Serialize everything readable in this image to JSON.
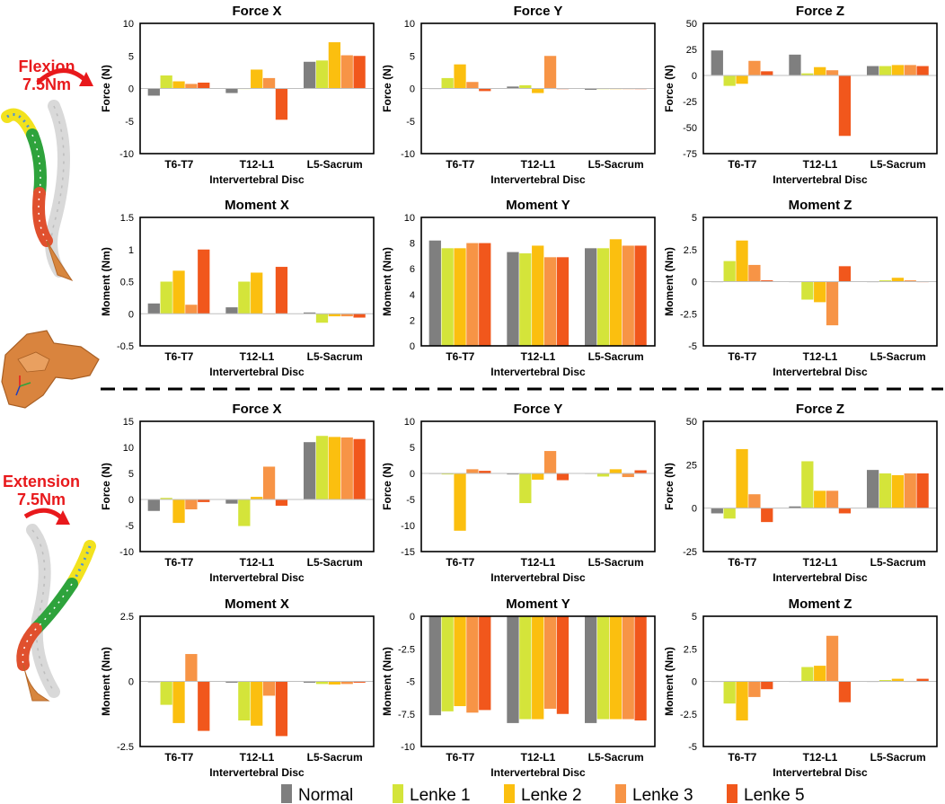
{
  "colors": {
    "Normal": "#7f7f7f",
    "Lenke 1": "#d4e43a",
    "Lenke 2": "#fbbf0f",
    "Lenke 3": "#f79446",
    "Lenke 5": "#f1571c",
    "side_label": "#e8191c"
  },
  "side_labels": {
    "flexion": [
      "Flexion",
      "7.5Nm"
    ],
    "extension": [
      "Extension",
      "7.5Nm"
    ]
  },
  "legend": [
    "Normal",
    "Lenke 1",
    "Lenke 2",
    "Lenke 3",
    "Lenke 5"
  ],
  "chart_data": [
    {
      "id": "flex-force-x",
      "type": "bar",
      "title": "Force X",
      "xlabel": "Intervertebral Disc",
      "ylabel": "Force (N)",
      "categories": [
        "T6-T7",
        "T12-L1",
        "L5-Sacrum"
      ],
      "ylim": [
        -10,
        10
      ],
      "yticks": [
        -10,
        -5,
        0,
        5,
        10
      ],
      "ytick_labels": [
        "-10",
        "-5",
        "0",
        "5",
        "10"
      ],
      "series": [
        {
          "name": "Normal",
          "values": [
            -1.1,
            -0.7,
            4.1
          ]
        },
        {
          "name": "Lenke 1",
          "values": [
            2.0,
            0.0,
            4.3
          ]
        },
        {
          "name": "Lenke 2",
          "values": [
            1.1,
            2.9,
            7.1
          ]
        },
        {
          "name": "Lenke 3",
          "values": [
            0.7,
            1.6,
            5.1
          ]
        },
        {
          "name": "Lenke 5",
          "values": [
            0.9,
            -4.8,
            5.0
          ]
        }
      ]
    },
    {
      "id": "flex-force-y",
      "type": "bar",
      "title": "Force Y",
      "xlabel": "Intervertebral Disc",
      "ylabel": "Force (N)",
      "categories": [
        "T6-T7",
        "T12-L1",
        "L5-Sacrum"
      ],
      "ylim": [
        -10,
        10
      ],
      "yticks": [
        -10,
        -5,
        0,
        5,
        10
      ],
      "ytick_labels": [
        "-10",
        "-5",
        "0",
        "5",
        "10"
      ],
      "series": [
        {
          "name": "Normal",
          "values": [
            0.0,
            0.3,
            -0.2
          ]
        },
        {
          "name": "Lenke 1",
          "values": [
            1.6,
            0.5,
            -0.1
          ]
        },
        {
          "name": "Lenke 2",
          "values": [
            3.7,
            -0.7,
            -0.1
          ]
        },
        {
          "name": "Lenke 3",
          "values": [
            1.0,
            5.0,
            -0.1
          ]
        },
        {
          "name": "Lenke 5",
          "values": [
            -0.4,
            -0.1,
            -0.1
          ]
        }
      ]
    },
    {
      "id": "flex-force-z",
      "type": "bar",
      "title": "Force Z",
      "xlabel": "Intervertebral Disc",
      "ylabel": "Force (N)",
      "categories": [
        "T6-T7",
        "T12-L1",
        "L5-Sacrum"
      ],
      "ylim": [
        -75,
        50
      ],
      "yticks": [
        -75,
        -50,
        -25,
        0,
        25,
        50
      ],
      "ytick_labels": [
        "-75",
        "-50",
        "-25",
        "0",
        "25",
        "50"
      ],
      "series": [
        {
          "name": "Normal",
          "values": [
            24,
            20,
            9
          ]
        },
        {
          "name": "Lenke 1",
          "values": [
            -10,
            2,
            9
          ]
        },
        {
          "name": "Lenke 2",
          "values": [
            -8,
            8,
            10
          ]
        },
        {
          "name": "Lenke 3",
          "values": [
            14,
            5,
            10
          ]
        },
        {
          "name": "Lenke 5",
          "values": [
            4,
            -58,
            9
          ]
        }
      ]
    },
    {
      "id": "flex-moment-x",
      "type": "bar",
      "title": "Moment X",
      "xlabel": "Intervertebral Disc",
      "ylabel": "Moment (Nm)",
      "categories": [
        "T6-T7",
        "T12-L1",
        "L5-Sacrum"
      ],
      "ylim": [
        -0.5,
        1.5
      ],
      "yticks": [
        -0.5,
        0,
        0.5,
        1,
        1.5
      ],
      "ytick_labels": [
        "-0.5",
        "0",
        "0.5",
        "1",
        "1.5"
      ],
      "series": [
        {
          "name": "Normal",
          "values": [
            0.16,
            0.1,
            0.02
          ]
        },
        {
          "name": "Lenke 1",
          "values": [
            0.5,
            0.5,
            -0.14
          ]
        },
        {
          "name": "Lenke 2",
          "values": [
            0.67,
            0.64,
            -0.04
          ]
        },
        {
          "name": "Lenke 3",
          "values": [
            0.14,
            0.0,
            -0.04
          ]
        },
        {
          "name": "Lenke 5",
          "values": [
            1.0,
            0.73,
            -0.06
          ]
        }
      ]
    },
    {
      "id": "flex-moment-y",
      "type": "bar",
      "title": "Moment Y",
      "xlabel": "Intervertebral Disc",
      "ylabel": "Moment (Nm)",
      "categories": [
        "T6-T7",
        "T12-L1",
        "L5-Sacrum"
      ],
      "ylim": [
        0,
        10
      ],
      "yticks": [
        0,
        2,
        4,
        6,
        8,
        10
      ],
      "ytick_labels": [
        "0",
        "2",
        "4",
        "6",
        "8",
        "10"
      ],
      "series": [
        {
          "name": "Normal",
          "values": [
            8.2,
            7.3,
            7.6
          ]
        },
        {
          "name": "Lenke 1",
          "values": [
            7.6,
            7.2,
            7.6
          ]
        },
        {
          "name": "Lenke 2",
          "values": [
            7.6,
            7.8,
            8.3
          ]
        },
        {
          "name": "Lenke 3",
          "values": [
            8.0,
            6.9,
            7.8
          ]
        },
        {
          "name": "Lenke 5",
          "values": [
            8.0,
            6.9,
            7.8
          ]
        }
      ]
    },
    {
      "id": "flex-moment-z",
      "type": "bar",
      "title": "Moment Z",
      "xlabel": "Intervertebral Disc",
      "ylabel": "Moment (Nm)",
      "categories": [
        "T6-T7",
        "T12-L1",
        "L5-Sacrum"
      ],
      "ylim": [
        -5,
        5
      ],
      "yticks": [
        -5,
        -2.5,
        0,
        2.5,
        5
      ],
      "ytick_labels": [
        "-5",
        "-2.5",
        "0",
        "2.5",
        "5"
      ],
      "series": [
        {
          "name": "Normal",
          "values": [
            0.0,
            0.0,
            0.0
          ]
        },
        {
          "name": "Lenke 1",
          "values": [
            1.6,
            -1.4,
            0.1
          ]
        },
        {
          "name": "Lenke 2",
          "values": [
            3.2,
            -1.6,
            0.3
          ]
        },
        {
          "name": "Lenke 3",
          "values": [
            1.3,
            -3.4,
            0.1
          ]
        },
        {
          "name": "Lenke 5",
          "values": [
            0.1,
            1.2,
            0.0
          ]
        }
      ]
    },
    {
      "id": "ext-force-x",
      "type": "bar",
      "title": "Force X",
      "xlabel": "Intervertebral Disc",
      "ylabel": "Force (N)",
      "categories": [
        "T6-T7",
        "T12-L1",
        "L5-Sacrum"
      ],
      "ylim": [
        -10,
        15
      ],
      "yticks": [
        -10,
        -5,
        0,
        5,
        10,
        15
      ],
      "ytick_labels": [
        "-10",
        "-5",
        "0",
        "5",
        "10",
        "15"
      ],
      "series": [
        {
          "name": "Normal",
          "values": [
            -2.2,
            -0.8,
            11.0
          ]
        },
        {
          "name": "Lenke 1",
          "values": [
            0.3,
            -5.1,
            12.2
          ]
        },
        {
          "name": "Lenke 2",
          "values": [
            -4.5,
            0.5,
            12.0
          ]
        },
        {
          "name": "Lenke 3",
          "values": [
            -1.9,
            6.3,
            11.9
          ]
        },
        {
          "name": "Lenke 5",
          "values": [
            -0.5,
            -1.2,
            11.6
          ]
        }
      ]
    },
    {
      "id": "ext-force-y",
      "type": "bar",
      "title": "Force Y",
      "xlabel": "Intervertebral Disc",
      "ylabel": "Force (N)",
      "categories": [
        "T6-T7",
        "T12-L1",
        "L5-Sacrum"
      ],
      "ylim": [
        -15,
        10
      ],
      "yticks": [
        -15,
        -10,
        -5,
        0,
        5,
        10
      ],
      "ytick_labels": [
        "-15",
        "-10",
        "-5",
        "0",
        "5",
        "10"
      ],
      "series": [
        {
          "name": "Normal",
          "values": [
            0.0,
            -0.2,
            0.0
          ]
        },
        {
          "name": "Lenke 1",
          "values": [
            -0.2,
            -5.7,
            -0.6
          ]
        },
        {
          "name": "Lenke 2",
          "values": [
            -11.0,
            -1.2,
            0.8
          ]
        },
        {
          "name": "Lenke 3",
          "values": [
            0.8,
            4.3,
            -0.7
          ]
        },
        {
          "name": "Lenke 5",
          "values": [
            0.5,
            -1.3,
            0.6
          ]
        }
      ]
    },
    {
      "id": "ext-force-z",
      "type": "bar",
      "title": "Force Z",
      "xlabel": "Intervertebral Disc",
      "ylabel": "Force (N)",
      "categories": [
        "T6-T7",
        "T12-L1",
        "L5-Sacrum"
      ],
      "ylim": [
        -25,
        50
      ],
      "yticks": [
        -25,
        0,
        25,
        50
      ],
      "ytick_labels": [
        "-25",
        "0",
        "25",
        "50"
      ],
      "series": [
        {
          "name": "Normal",
          "values": [
            -3,
            1,
            22
          ]
        },
        {
          "name": "Lenke 1",
          "values": [
            -6,
            27,
            20
          ]
        },
        {
          "name": "Lenke 2",
          "values": [
            34,
            10,
            19
          ]
        },
        {
          "name": "Lenke 3",
          "values": [
            8,
            10,
            20
          ]
        },
        {
          "name": "Lenke 5",
          "values": [
            -8,
            -3,
            20
          ]
        }
      ]
    },
    {
      "id": "ext-moment-x",
      "type": "bar",
      "title": "Moment X",
      "xlabel": "Intervertebral Disc",
      "ylabel": "Moment (Nm)",
      "categories": [
        "T6-T7",
        "T12-L1",
        "L5-Sacrum"
      ],
      "ylim": [
        -2.5,
        2.5
      ],
      "yticks": [
        -2.5,
        0,
        2.5
      ],
      "ytick_labels": [
        "-2.5",
        "0",
        "2.5"
      ],
      "series": [
        {
          "name": "Normal",
          "values": [
            -0.03,
            -0.05,
            -0.05
          ]
        },
        {
          "name": "Lenke 1",
          "values": [
            -0.9,
            -1.5,
            -0.1
          ]
        },
        {
          "name": "Lenke 2",
          "values": [
            -1.6,
            -1.7,
            -0.12
          ]
        },
        {
          "name": "Lenke 3",
          "values": [
            1.05,
            -0.55,
            -0.1
          ]
        },
        {
          "name": "Lenke 5",
          "values": [
            -1.9,
            -2.1,
            -0.05
          ]
        }
      ]
    },
    {
      "id": "ext-moment-y",
      "type": "bar",
      "title": "Moment Y",
      "xlabel": "Intervertebral Disc",
      "ylabel": "Moment (Nm)",
      "categories": [
        "T6-T7",
        "T12-L1",
        "L5-Sacrum"
      ],
      "ylim": [
        -10,
        0
      ],
      "yticks": [
        -10,
        -7.5,
        -5,
        -2.5,
        0
      ],
      "ytick_labels": [
        "-10",
        "-7.5",
        "-5",
        "-2.5",
        "0"
      ],
      "series": [
        {
          "name": "Normal",
          "values": [
            -7.6,
            -8.2,
            -8.2
          ]
        },
        {
          "name": "Lenke 1",
          "values": [
            -7.3,
            -7.9,
            -7.9
          ]
        },
        {
          "name": "Lenke 2",
          "values": [
            -6.9,
            -7.9,
            -7.9
          ]
        },
        {
          "name": "Lenke 3",
          "values": [
            -7.4,
            -7.1,
            -7.9
          ]
        },
        {
          "name": "Lenke 5",
          "values": [
            -7.2,
            -7.5,
            -8.0
          ]
        }
      ]
    },
    {
      "id": "ext-moment-z",
      "type": "bar",
      "title": "Moment Z",
      "xlabel": "Intervertebral Disc",
      "ylabel": "Moment (Nm)",
      "categories": [
        "T6-T7",
        "T12-L1",
        "L5-Sacrum"
      ],
      "ylim": [
        -5,
        5
      ],
      "yticks": [
        -5,
        -2.5,
        0,
        2.5,
        5
      ],
      "ytick_labels": [
        "-5",
        "-2.5",
        "0",
        "2.5",
        "5"
      ],
      "series": [
        {
          "name": "Normal",
          "values": [
            0.0,
            0.0,
            0.0
          ]
        },
        {
          "name": "Lenke 1",
          "values": [
            -1.7,
            1.1,
            0.1
          ]
        },
        {
          "name": "Lenke 2",
          "values": [
            -3.0,
            1.2,
            0.2
          ]
        },
        {
          "name": "Lenke 3",
          "values": [
            -1.2,
            3.5,
            0.0
          ]
        },
        {
          "name": "Lenke 5",
          "values": [
            -0.6,
            -1.6,
            0.2
          ]
        }
      ]
    }
  ]
}
